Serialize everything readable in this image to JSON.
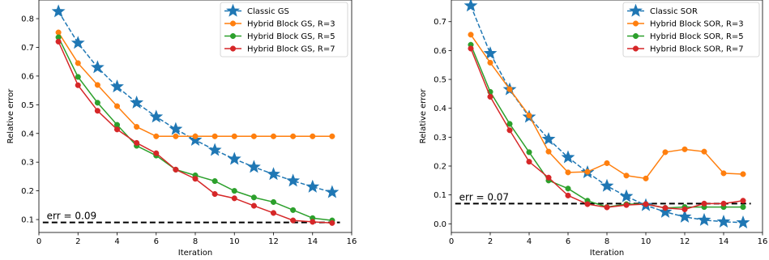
{
  "chart_data": [
    {
      "type": "line",
      "title": "",
      "xlabel": "Iteration",
      "ylabel": "Relative error",
      "xlim": [
        0,
        16
      ],
      "ylim": [
        0.055,
        0.865
      ],
      "xticks": [
        0,
        2,
        4,
        6,
        8,
        10,
        12,
        14,
        16
      ],
      "yticks": [
        0.1,
        0.2,
        0.3,
        0.4,
        0.5,
        0.6,
        0.7,
        0.8
      ],
      "ytick_labels": [
        "0.1",
        "0.2",
        "0.3",
        "0.4",
        "0.5",
        "0.6",
        "0.7",
        "0.8"
      ],
      "grid": false,
      "legend_position": "top-right",
      "x": [
        1,
        2,
        3,
        4,
        5,
        6,
        7,
        8,
        9,
        10,
        11,
        12,
        13,
        14,
        15
      ],
      "series": [
        {
          "name": "Classic GS",
          "color": "#1f77b4",
          "marker": "star",
          "linestyle": "dashed",
          "values": [
            0.825,
            0.715,
            0.63,
            0.563,
            0.507,
            0.458,
            0.415,
            0.377,
            0.342,
            0.311,
            0.283,
            0.258,
            0.235,
            0.214,
            0.195
          ]
        },
        {
          "name": "Hybrid Block GS, R=3",
          "color": "#ff7f0e",
          "marker": "circle",
          "linestyle": "solid",
          "values": [
            0.752,
            0.645,
            0.569,
            0.495,
            0.423,
            0.39,
            0.39,
            0.39,
            0.39,
            0.39,
            0.39,
            0.39,
            0.39,
            0.39,
            0.39
          ]
        },
        {
          "name": "Hybrid Block GS, R=5",
          "color": "#2ca02c",
          "marker": "circle",
          "linestyle": "solid",
          "values": [
            0.735,
            0.597,
            0.507,
            0.43,
            0.357,
            0.323,
            0.274,
            0.254,
            0.234,
            0.2,
            0.177,
            0.161,
            0.133,
            0.105,
            0.097
          ]
        },
        {
          "name": "Hybrid Block GS, R=7",
          "color": "#d62728",
          "marker": "circle",
          "linestyle": "solid",
          "values": [
            0.72,
            0.568,
            0.479,
            0.414,
            0.367,
            0.331,
            0.274,
            0.242,
            0.189,
            0.174,
            0.148,
            0.123,
            0.097,
            0.092,
            0.088
          ]
        }
      ],
      "threshold": {
        "value": 0.09,
        "label": "err = 0.09",
        "color": "#000000",
        "linestyle": "dashed"
      }
    },
    {
      "type": "line",
      "title": "",
      "xlabel": "Iteration",
      "ylabel": "Relative error",
      "xlim": [
        0,
        16
      ],
      "ylim": [
        -0.03,
        0.775
      ],
      "xticks": [
        0,
        2,
        4,
        6,
        8,
        10,
        12,
        14,
        16
      ],
      "yticks": [
        0.0,
        0.1,
        0.2,
        0.3,
        0.4,
        0.5,
        0.6,
        0.7
      ],
      "ytick_labels": [
        "0.0",
        "0.1",
        "0.2",
        "0.3",
        "0.4",
        "0.5",
        "0.6",
        "0.7"
      ],
      "grid": false,
      "legend_position": "top-right",
      "x": [
        1,
        2,
        3,
        4,
        5,
        6,
        7,
        8,
        9,
        10,
        11,
        12,
        13,
        14,
        15
      ],
      "series": [
        {
          "name": "Classic SOR",
          "color": "#1f77b4",
          "marker": "star",
          "linestyle": "dashed",
          "values": [
            0.755,
            0.59,
            0.465,
            0.37,
            0.293,
            0.23,
            0.178,
            0.131,
            0.095,
            0.064,
            0.041,
            0.024,
            0.013,
            0.007,
            0.004
          ]
        },
        {
          "name": "Hybrid Block SOR, R=3",
          "color": "#ff7f0e",
          "marker": "circle",
          "linestyle": "solid",
          "values": [
            0.655,
            0.558,
            0.466,
            0.375,
            0.25,
            0.178,
            0.18,
            0.21,
            0.167,
            0.157,
            0.248,
            0.258,
            0.25,
            0.175,
            0.172
          ]
        },
        {
          "name": "Hybrid Block SOR, R=5",
          "color": "#2ca02c",
          "marker": "circle",
          "linestyle": "solid",
          "values": [
            0.62,
            0.457,
            0.346,
            0.248,
            0.15,
            0.122,
            0.08,
            0.058,
            0.068,
            0.068,
            0.055,
            0.058,
            0.058,
            0.058,
            0.058
          ]
        },
        {
          "name": "Hybrid Block SOR, R=7",
          "color": "#d62728",
          "marker": "circle",
          "linestyle": "solid",
          "values": [
            0.607,
            0.44,
            0.324,
            0.215,
            0.16,
            0.098,
            0.068,
            0.057,
            0.065,
            0.068,
            0.055,
            0.05,
            0.07,
            0.07,
            0.08
          ]
        }
      ],
      "threshold": {
        "value": 0.07,
        "label": "err = 0.07",
        "color": "#000000",
        "linestyle": "dashed"
      }
    }
  ]
}
